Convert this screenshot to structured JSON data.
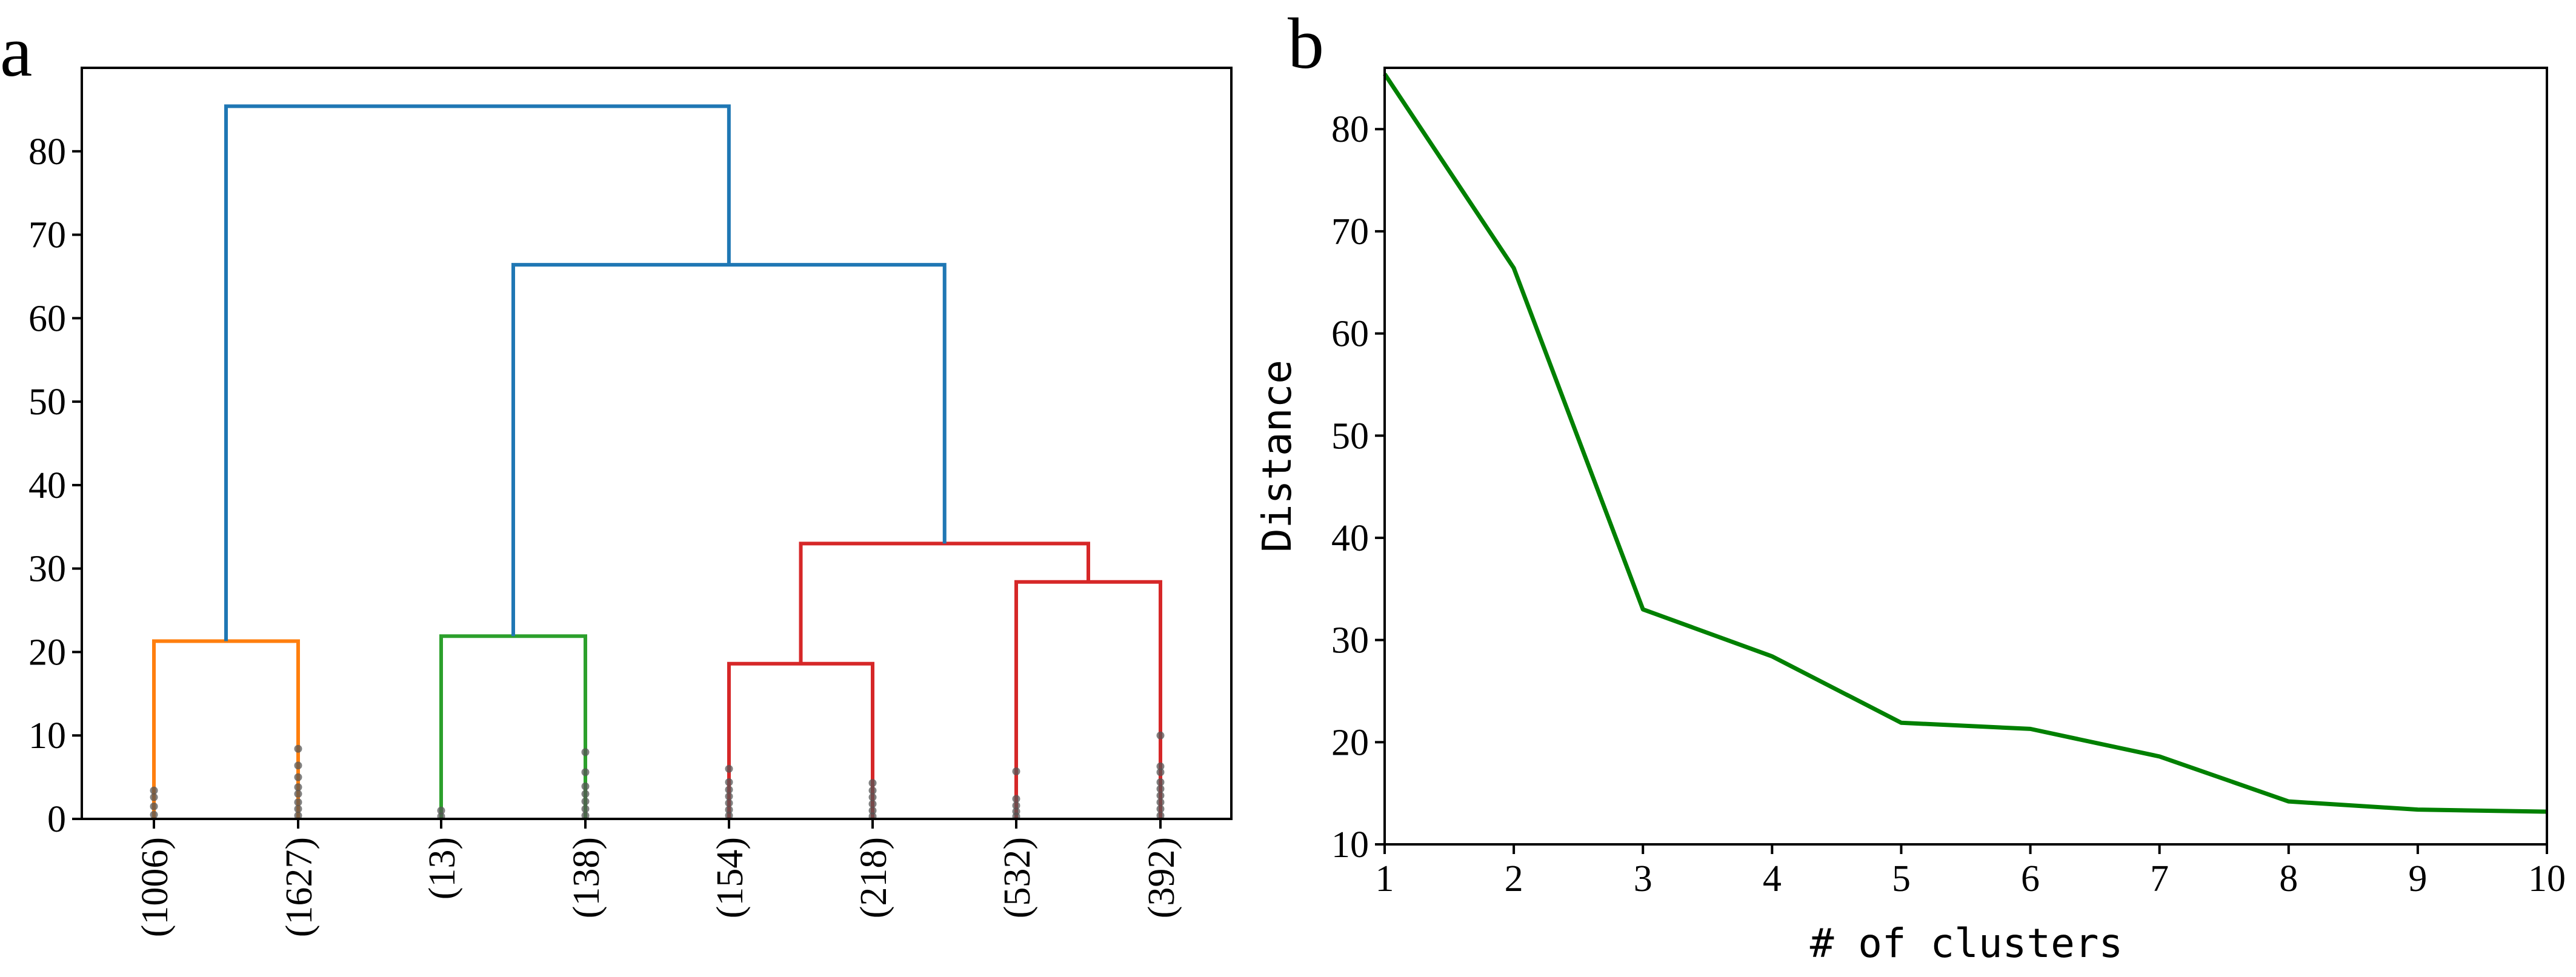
{
  "panels": {
    "a": {
      "letter": "a"
    },
    "b": {
      "letter": "b"
    }
  },
  "chart_data": [
    {
      "type": "dendrogram",
      "panel": "a",
      "ylim": [
        0,
        90
      ],
      "yticks": [
        0,
        10,
        20,
        30,
        40,
        50,
        60,
        70,
        80
      ],
      "leaves": [
        "(1006)",
        "(1627)",
        "(13)",
        "(138)",
        "(154)",
        "(218)",
        "(532)",
        "(392)"
      ],
      "merges": [
        {
          "left": "(1006)",
          "right": "(1627)",
          "height": 21.3,
          "color": "#ff7f0e"
        },
        {
          "left": "(13)",
          "right": "(138)",
          "height": 21.9,
          "color": "#2ca02c"
        },
        {
          "left": "(154)",
          "right": "(218)",
          "height": 18.6,
          "color": "#d62728"
        },
        {
          "left": "(532)",
          "right": "(392)",
          "height": 28.4,
          "color": "#d62728"
        },
        {
          "left": "[(154),(218)]",
          "right": "[(532),(392)]",
          "height": 33.0,
          "color": "#d62728"
        },
        {
          "left": "[(13),(138)]",
          "right": "[red cluster]",
          "height": 66.4,
          "color": "#1f77b4"
        },
        {
          "left": "[(1006),(1627)]",
          "right": "[rest]",
          "height": 85.4,
          "color": "#1f77b4"
        }
      ],
      "leaf_markers": [
        {
          "leaf": "(1006)",
          "color": "#ff7f0e",
          "heights": [
            0.5,
            1.5,
            2.6,
            3.4
          ]
        },
        {
          "leaf": "(1627)",
          "color": "#ff7f0e",
          "heights": [
            0.4,
            1.2,
            2.0,
            3.0,
            3.8,
            5.0,
            6.4,
            8.4
          ]
        },
        {
          "leaf": "(13)",
          "color": "#2ca02c",
          "heights": [
            0.3,
            1.0
          ]
        },
        {
          "leaf": "(138)",
          "color": "#2ca02c",
          "heights": [
            0.4,
            1.2,
            2.1,
            3.0,
            3.9,
            5.6,
            8.0
          ]
        },
        {
          "leaf": "(154)",
          "color": "#d62728",
          "heights": [
            0.4,
            1.1,
            1.9,
            2.7,
            3.5,
            4.4,
            6.0
          ]
        },
        {
          "leaf": "(218)",
          "color": "#d62728",
          "heights": [
            0.3,
            1.0,
            1.8,
            2.6,
            3.4,
            4.3
          ]
        },
        {
          "leaf": "(532)",
          "color": "#d62728",
          "heights": [
            0.3,
            0.9,
            1.6,
            2.4,
            5.7
          ]
        },
        {
          "leaf": "(392)",
          "color": "#d62728",
          "heights": [
            0.4,
            1.2,
            2.0,
            2.8,
            3.6,
            4.4,
            5.6,
            6.3,
            10.0
          ]
        }
      ]
    },
    {
      "type": "line",
      "panel": "b",
      "xlabel": "# of clusters",
      "ylabel": "Distance",
      "xlim": [
        1,
        10
      ],
      "ylim": [
        10,
        86
      ],
      "xticks": [
        1,
        2,
        3,
        4,
        5,
        6,
        7,
        8,
        9,
        10
      ],
      "yticks": [
        10,
        20,
        30,
        40,
        50,
        60,
        70,
        80
      ],
      "color": "#008000",
      "x": [
        1,
        2,
        3,
        4,
        5,
        6,
        7,
        8,
        9,
        10
      ],
      "y": [
        85.4,
        66.4,
        33.0,
        28.4,
        21.9,
        21.3,
        18.6,
        14.2,
        13.4,
        13.2
      ]
    }
  ]
}
